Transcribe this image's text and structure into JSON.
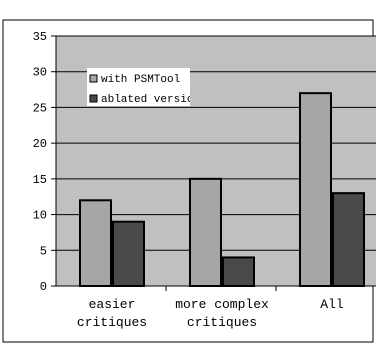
{
  "chart_data": {
    "type": "bar",
    "categories": [
      [
        "easier",
        "critiques"
      ],
      [
        "more complex",
        "critiques"
      ],
      [
        "All"
      ]
    ],
    "series": [
      {
        "name": "with PSMTool",
        "color": "#a6a6a6",
        "values": [
          12,
          15,
          27
        ]
      },
      {
        "name": "ablated version",
        "color": "#4a4a4a",
        "values": [
          9,
          4,
          13
        ]
      }
    ],
    "ylim": [
      0,
      35
    ],
    "yticks": [
      0,
      5,
      10,
      15,
      20,
      25,
      30,
      35
    ],
    "grid": true,
    "plot_background": "#c0c0c0",
    "legend_position": "upper-left inside plot",
    "title": "",
    "xlabel": "",
    "ylabel": ""
  }
}
